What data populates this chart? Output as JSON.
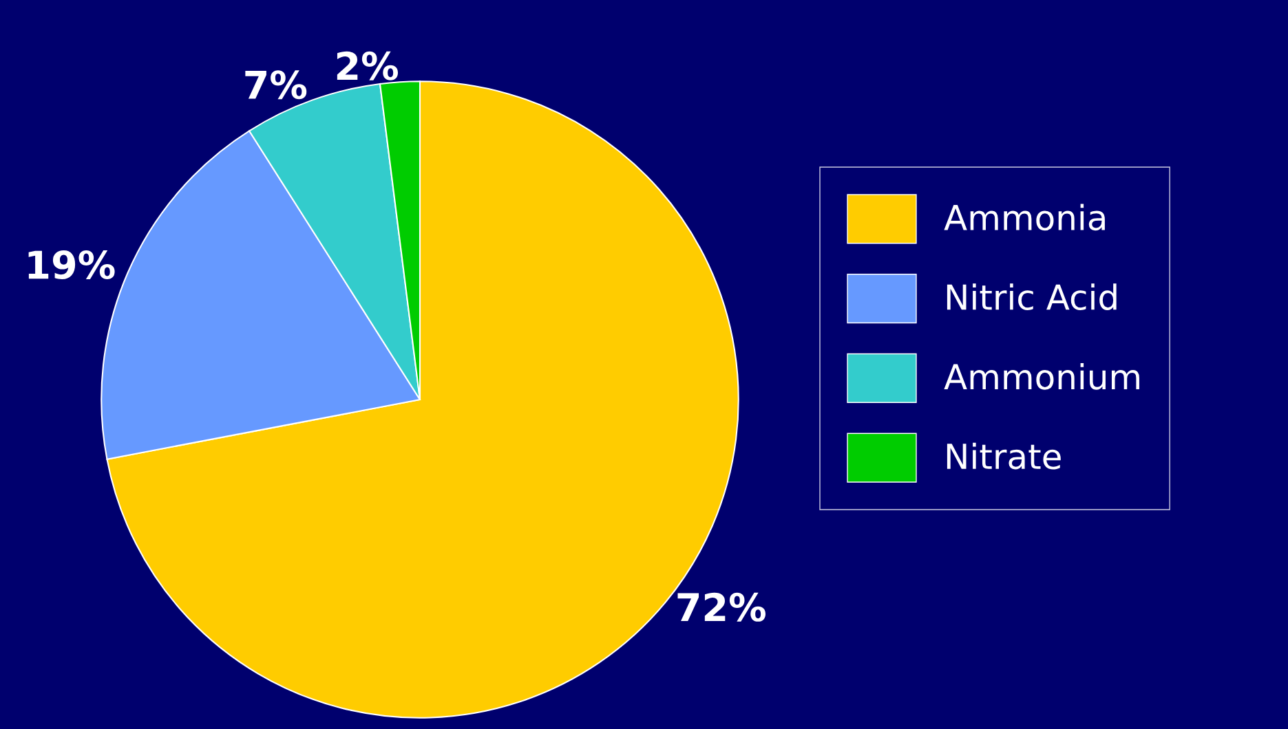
{
  "chart_data": {
    "type": "pie",
    "categories": [
      "Ammonia",
      "Nitric Acid",
      "Ammonium",
      "Nitrate"
    ],
    "values": [
      72,
      19,
      7,
      2
    ],
    "value_labels": [
      "72%",
      "19%",
      "7%",
      "2%"
    ],
    "colors": [
      "#ffcc00",
      "#6699ff",
      "#33cccc",
      "#00cc00"
    ],
    "legend": "right"
  }
}
